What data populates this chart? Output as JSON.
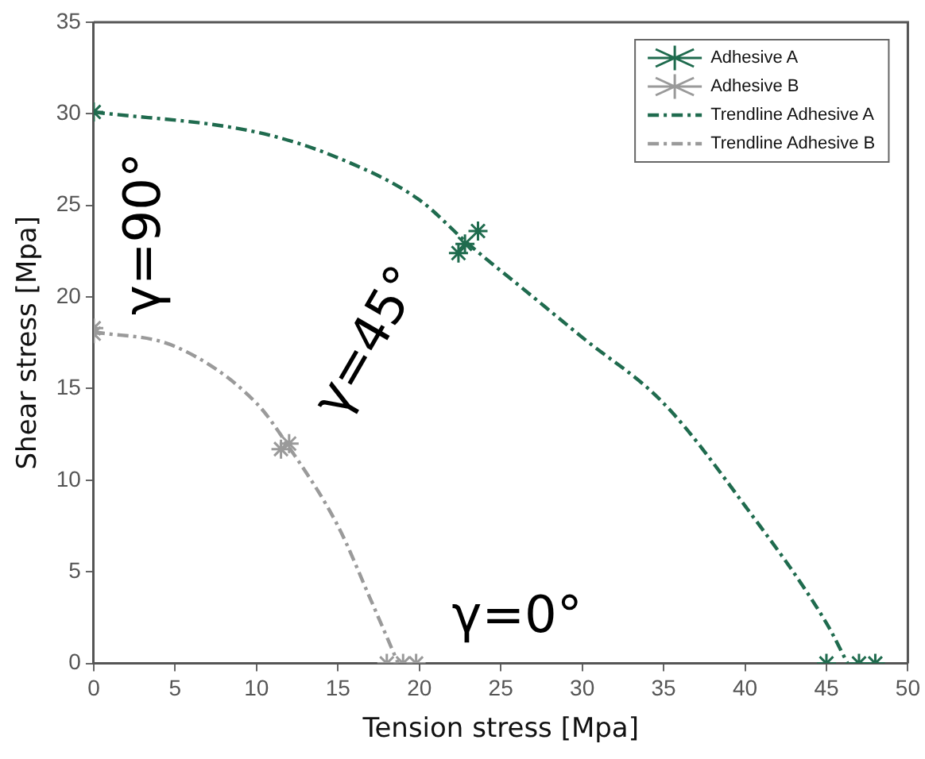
{
  "chart_data": {
    "type": "scatter",
    "xlabel": "Tension stress [Mpa]",
    "ylabel": "Shear stress [Mpa]",
    "annotations": [
      "γ=90°",
      "γ=45°",
      "γ=0°"
    ],
    "xlim": [
      0,
      50
    ],
    "xticks": [
      0,
      5,
      10,
      15,
      20,
      25,
      30,
      35,
      40,
      45,
      50
    ],
    "ylim": [
      0,
      35
    ],
    "yticks": [
      0,
      5,
      10,
      15,
      20,
      25,
      30,
      35
    ],
    "grid": false,
    "legend": "top right",
    "marker": "cross",
    "series": [
      {
        "name": "Adhesive A",
        "type": "scatter",
        "color": "#1f6b4e",
        "x": [
          0,
          22.4,
          22.8,
          23.6,
          45,
          47,
          48
        ],
        "values": [
          30.1,
          22.4,
          22.9,
          23.6,
          0,
          0,
          0
        ]
      },
      {
        "name": "Adhesive B",
        "type": "scatter",
        "color": "#9a9a9a",
        "x": [
          0,
          0,
          11.5,
          12,
          18,
          19,
          19.8
        ],
        "values": [
          18.3,
          18,
          11.7,
          12,
          0,
          0,
          0
        ]
      },
      {
        "name": "Trendline Adhesive A",
        "type": "line",
        "color": "#1f6b4e",
        "marker": "none",
        "line_style": "dashed",
        "x": [
          0,
          10,
          15,
          20,
          23,
          26.3,
          30,
          35,
          40,
          45,
          46.3
        ],
        "values": [
          30.1,
          29,
          27.6,
          25.3,
          22.9,
          20.5,
          17.8,
          14.2,
          8.6,
          2.2,
          0
        ]
      },
      {
        "name": "Trendline Adhesive B",
        "type": "line",
        "color": "#9a9a9a",
        "marker": "none",
        "line_style": "dashed",
        "x": [
          0,
          5,
          10,
          12,
          15,
          17,
          18.7
        ],
        "values": [
          18.1,
          17.3,
          14.2,
          11.8,
          7.5,
          3.5,
          0
        ]
      }
    ]
  }
}
